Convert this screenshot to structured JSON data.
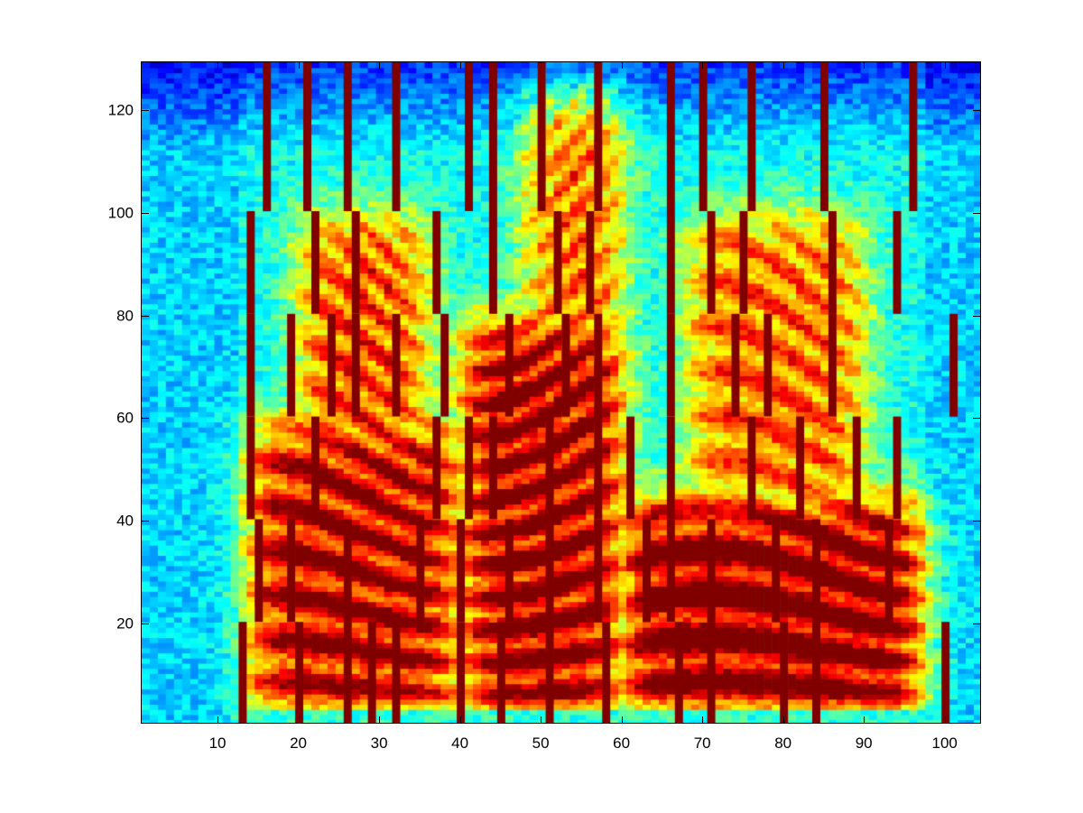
{
  "chart_data": {
    "type": "heatmap",
    "title": "",
    "xlabel": "",
    "ylabel": "",
    "colormap": "jet",
    "xlim": [
      0.5,
      104.5
    ],
    "ylim": [
      0.5,
      129.5
    ],
    "n_cols": 104,
    "n_rows": 129,
    "grid": false,
    "legend": null,
    "x_ticks": [
      10,
      20,
      30,
      40,
      50,
      60,
      70,
      80,
      90,
      100
    ],
    "x_tick_labels": [
      "10",
      "20",
      "30",
      "40",
      "50",
      "60",
      "70",
      "80",
      "90",
      "100"
    ],
    "y_ticks": [
      20,
      40,
      60,
      80,
      100,
      120
    ],
    "y_tick_labels": [
      "20",
      "40",
      "60",
      "80",
      "100",
      "120"
    ],
    "marker_color": "#800000",
    "marker_bands": [
      {
        "y_range": [
          1,
          20
        ],
        "columns": [
          13,
          20,
          26,
          29,
          32,
          40,
          45,
          51,
          58,
          67,
          71,
          80,
          84,
          100
        ]
      },
      {
        "y_range": [
          21,
          40
        ],
        "columns": [
          15,
          19,
          26,
          35,
          40,
          46,
          51,
          57,
          63,
          66,
          71,
          79,
          84,
          93
        ]
      },
      {
        "y_range": [
          41,
          60
        ],
        "columns": [
          14,
          22,
          37,
          41,
          44,
          51,
          57,
          61,
          66,
          76,
          82,
          89,
          94
        ]
      },
      {
        "y_range": [
          61,
          80
        ],
        "columns": [
          14,
          19,
          24,
          27,
          32,
          38,
          46,
          53,
          57,
          66,
          74,
          78,
          86,
          101
        ]
      },
      {
        "y_range": [
          81,
          100
        ],
        "columns": [
          14,
          22,
          27,
          37,
          44,
          52,
          56,
          66,
          71,
          75,
          86,
          94
        ]
      },
      {
        "y_range": [
          101,
          129
        ],
        "columns": [
          16,
          21,
          26,
          32,
          41,
          44,
          50,
          57,
          66,
          70,
          76,
          85,
          96
        ]
      }
    ],
    "background_description": "Speech spectrogram: low energy (blue/cyan) at columns 1-12 and above row ~115; high energy (orange/red) harmonic stripes in rows 1-60 between columns ~14-97, strongest at rows 5-30.",
    "energy_regions": [
      {
        "x_range": [
          14,
          40
        ],
        "y_range": [
          1,
          60
        ],
        "level": 0.7
      },
      {
        "x_range": [
          40,
          60
        ],
        "y_range": [
          1,
          80
        ],
        "level": 0.75
      },
      {
        "x_range": [
          60,
          97
        ],
        "y_range": [
          1,
          45
        ],
        "level": 0.8
      },
      {
        "x_range": [
          20,
          36
        ],
        "y_range": [
          40,
          100
        ],
        "level": 0.55
      },
      {
        "x_range": [
          48,
          60
        ],
        "y_range": [
          60,
          125
        ],
        "level": 0.5
      },
      {
        "x_range": [
          68,
          90
        ],
        "y_range": [
          40,
          100
        ],
        "level": 0.5
      }
    ]
  }
}
